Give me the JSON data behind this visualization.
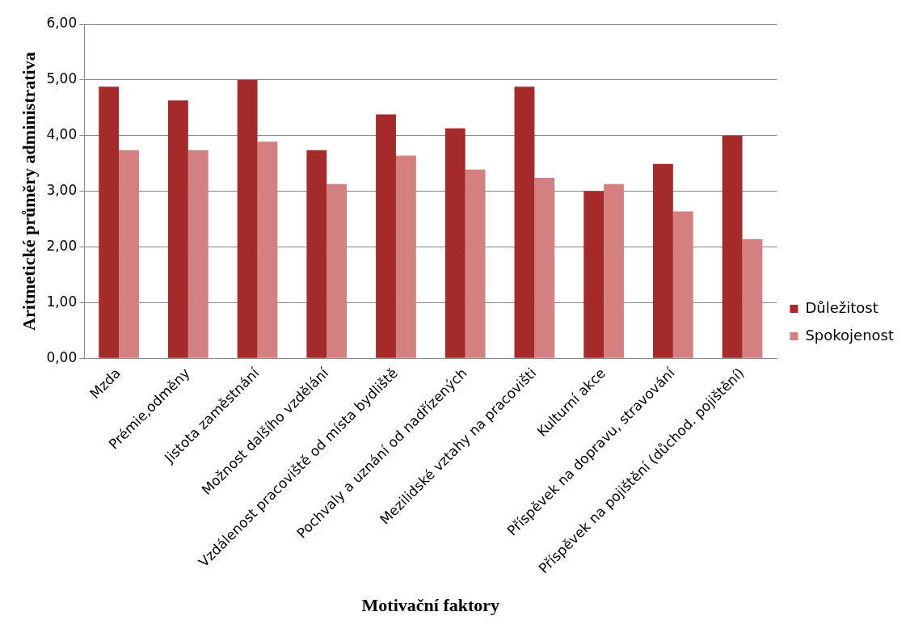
{
  "chart_data": {
    "type": "bar",
    "xlabel": "Motivační faktory",
    "ylabel": "Aritmetické průměry administrativa",
    "categories": [
      "Mzda",
      "Prémie,odměny",
      "Jistota zaměstnání",
      "Možnost dalšího vzdělání",
      "Vzdálenost pracoviště od místa bydliště",
      "Pochvaly a uznání od nadřízených",
      "Mezilidské vztahy na pracovišti",
      "Kulturní akce",
      "Příspěvek na dopravu, stravování",
      "Příspěvek na pojištění (důchod. pojištění)"
    ],
    "series": [
      {
        "name": "Důležitost",
        "color": "#a52a2a",
        "values": [
          4.88,
          4.63,
          5.0,
          3.74,
          4.38,
          4.13,
          4.88,
          3.0,
          3.49,
          4.0
        ]
      },
      {
        "name": "Spokojenost",
        "color": "#d48080",
        "values": [
          3.74,
          3.74,
          3.89,
          3.13,
          3.64,
          3.39,
          3.24,
          3.13,
          2.64,
          2.14
        ]
      }
    ],
    "ylim": [
      0,
      6
    ],
    "yticks": [
      {
        "value": 0,
        "label": "0,00"
      },
      {
        "value": 1,
        "label": "1,00"
      },
      {
        "value": 2,
        "label": "2,00"
      },
      {
        "value": 3,
        "label": "3,00"
      },
      {
        "value": 4,
        "label": "4,00"
      },
      {
        "value": 5,
        "label": "5,00"
      },
      {
        "value": 6,
        "label": "6,00"
      }
    ],
    "grid": "y",
    "legend": "right"
  }
}
